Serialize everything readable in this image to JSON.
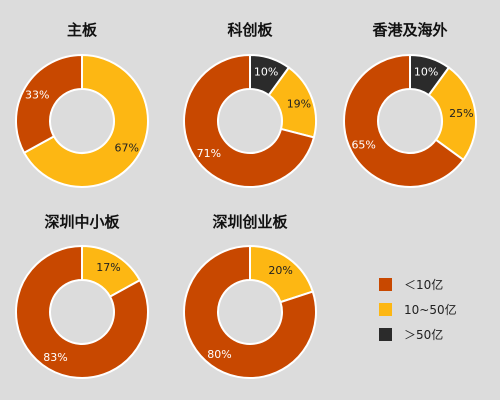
{
  "colors": {
    "background": "#dcdcdc",
    "lt10": "#c84800",
    "mid": "#fdb713",
    "gt50": "#2b2b2b"
  },
  "legend": [
    {
      "label": "＜10亿",
      "color_key": "lt10"
    },
    {
      "label": "10~50亿",
      "color_key": "mid"
    },
    {
      "label": "＞50亿",
      "color_key": "gt50"
    }
  ],
  "chart_data": [
    {
      "type": "pie",
      "title": "主板",
      "slices": [
        {
          "category": "10~50亿",
          "value": 67,
          "label": "67%",
          "color_key": "mid"
        },
        {
          "category": "＜10亿",
          "value": 33,
          "label": "33%",
          "color_key": "lt10"
        }
      ]
    },
    {
      "type": "pie",
      "title": "科创板",
      "slices": [
        {
          "category": "＞50亿",
          "value": 10,
          "label": "10%",
          "color_key": "gt50"
        },
        {
          "category": "10~50亿",
          "value": 19,
          "label": "19%",
          "color_key": "mid"
        },
        {
          "category": "＜10亿",
          "value": 71,
          "label": "71%",
          "color_key": "lt10"
        }
      ]
    },
    {
      "type": "pie",
      "title": "香港及海外",
      "slices": [
        {
          "category": "＞50亿",
          "value": 10,
          "label": "10%",
          "color_key": "gt50"
        },
        {
          "category": "10~50亿",
          "value": 25,
          "label": "25%",
          "color_key": "mid"
        },
        {
          "category": "＜10亿",
          "value": 65,
          "label": "65%",
          "color_key": "lt10"
        }
      ]
    },
    {
      "type": "pie",
      "title": "深圳中小板",
      "slices": [
        {
          "category": "10~50亿",
          "value": 17,
          "label": "17%",
          "color_key": "mid"
        },
        {
          "category": "＜10亿",
          "value": 83,
          "label": "83%",
          "color_key": "lt10"
        }
      ]
    },
    {
      "type": "pie",
      "title": "深圳创业板",
      "slices": [
        {
          "category": "10~50亿",
          "value": 20,
          "label": "20%",
          "color_key": "mid"
        },
        {
          "category": "＜10亿",
          "value": 80,
          "label": "80%",
          "color_key": "lt10"
        }
      ]
    }
  ]
}
